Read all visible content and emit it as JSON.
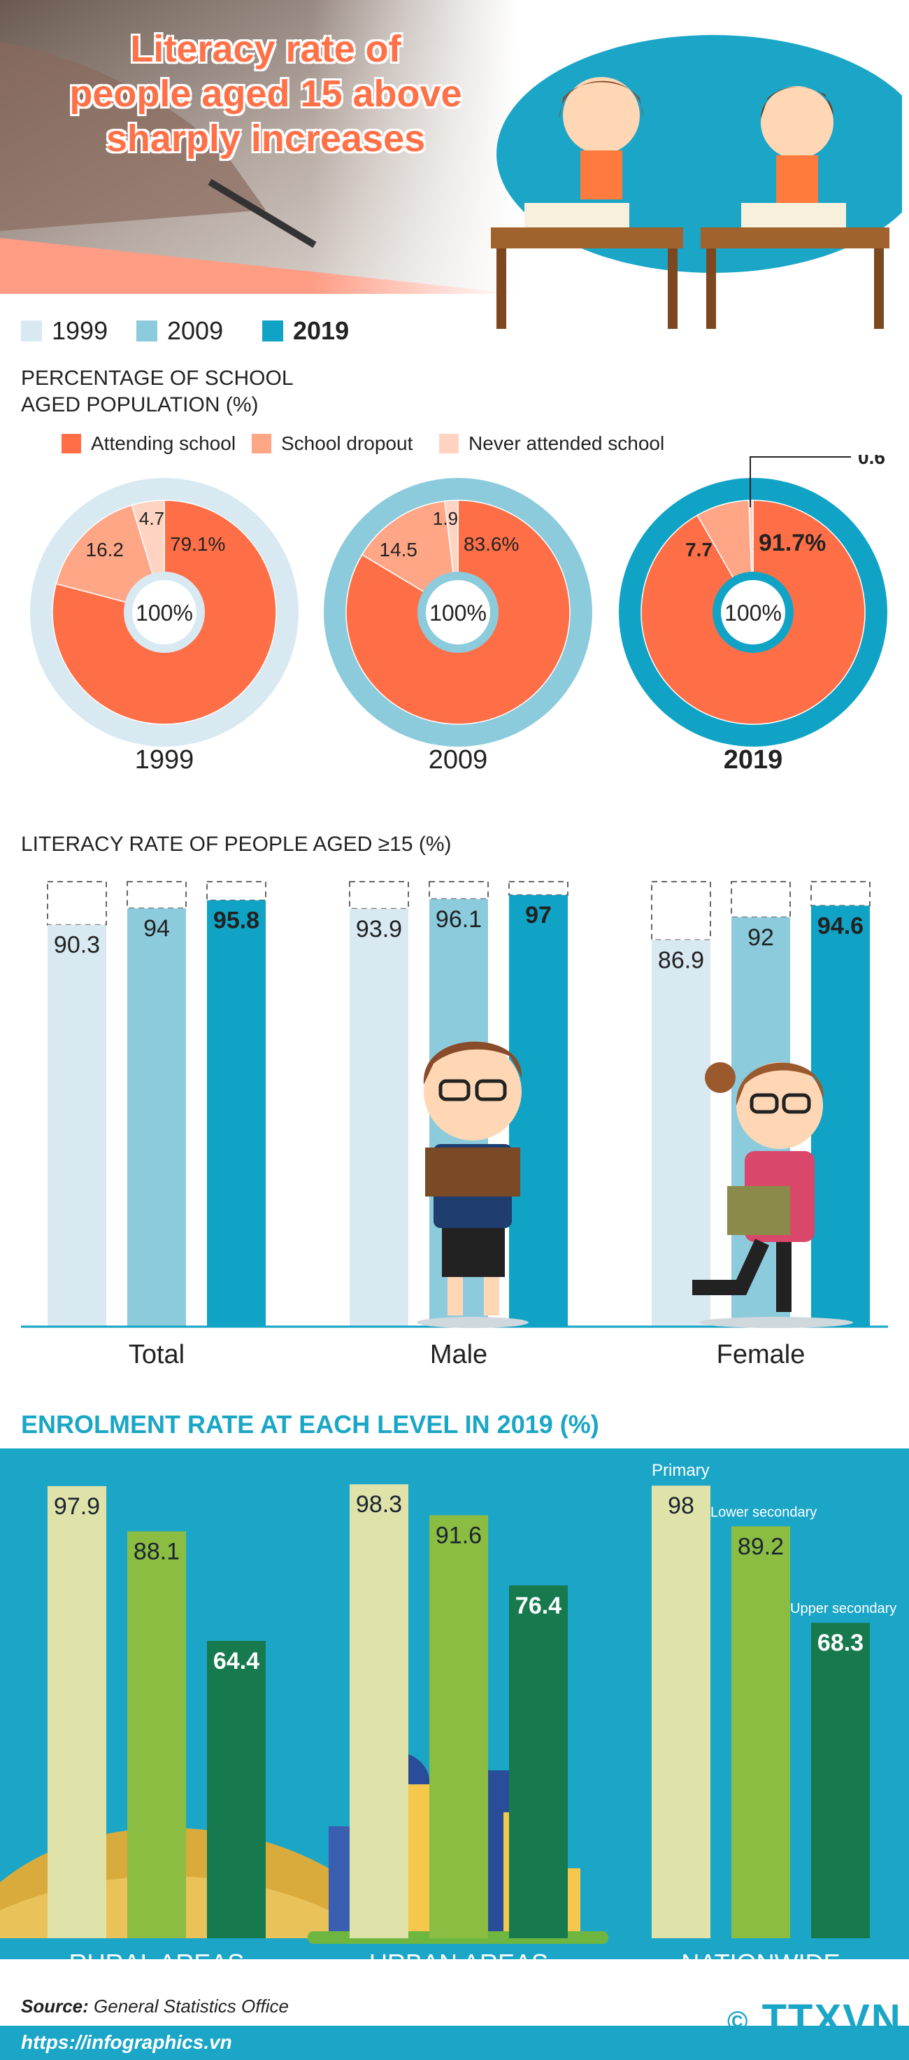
{
  "header": {
    "title_lines": [
      "Literacy rate of",
      "people aged 15 above",
      "sharply increases"
    ]
  },
  "year_legend": [
    {
      "label": "1999",
      "color": "#d8e9f2",
      "bold": false
    },
    {
      "label": "2009",
      "color": "#8ccbdc",
      "bold": false
    },
    {
      "label": "2019",
      "color": "#10a3c5",
      "bold": true
    }
  ],
  "colors": {
    "attending": "#ff6f47",
    "dropout": "#ffa686",
    "never": "#ffd3c2",
    "rural": "#dfe3a9",
    "light_green": "#8bbd42",
    "dark_green": "#17794e",
    "enrol_bg": "#1ba6c8"
  },
  "chart_data": [
    {
      "type": "pie",
      "title": "PERCENTAGE OF SCHOOL AGED POPULATION (%)",
      "legend": [
        "Attending school",
        "School dropout",
        "Never attended school"
      ],
      "center_label": "100%",
      "donuts": [
        {
          "year": "1999",
          "ring_color": "#d8e9f2",
          "attending": 79.1,
          "dropout": 16.2,
          "never": 4.7,
          "labels": {
            "attending": "79.1%",
            "dropout": "16.2",
            "never": "4.7"
          }
        },
        {
          "year": "2009",
          "ring_color": "#8ccbdc",
          "attending": 83.6,
          "dropout": 14.5,
          "never": 1.9,
          "labels": {
            "attending": "83.6%",
            "dropout": "14.5",
            "never": "1.9"
          }
        },
        {
          "year": "2019",
          "ring_color": "#10a3c5",
          "attending": 91.7,
          "dropout": 7.7,
          "never": 0.6,
          "labels": {
            "attending": "91.7%",
            "dropout": "7.7",
            "never": "0.6"
          }
        }
      ]
    },
    {
      "type": "bar",
      "title": "LITERACY RATE OF PEOPLE AGED ≥15 (%)",
      "categories": [
        "Total",
        "Male",
        "Female"
      ],
      "series": [
        {
          "name": "1999",
          "values": [
            90.3,
            93.9,
            86.9
          ]
        },
        {
          "name": "2009",
          "values": [
            94,
            96.1,
            92
          ]
        },
        {
          "name": "2019",
          "values": [
            95.8,
            97,
            94.6
          ]
        }
      ],
      "value_labels": [
        [
          "90.3",
          "93.9",
          "86.9"
        ],
        [
          "94",
          "96.1",
          "92"
        ],
        [
          "95.8",
          "97",
          "94.6"
        ]
      ],
      "ylim": [
        0,
        100
      ]
    },
    {
      "type": "bar",
      "title": "ENROLMENT RATE AT EACH LEVEL IN 2019 (%)",
      "categories": [
        "RURAL AREAS",
        "URBAN AREAS",
        "NATIONWIDE"
      ],
      "series": [
        {
          "name": "Primary",
          "values": [
            97.9,
            98.3,
            98
          ]
        },
        {
          "name": "Lower secondary",
          "values": [
            88.1,
            91.6,
            89.2
          ]
        },
        {
          "name": "Upper secondary",
          "values": [
            64.4,
            76.4,
            68.3
          ]
        }
      ],
      "value_labels": [
        [
          "97.9",
          "98.3",
          "98"
        ],
        [
          "88.1",
          "91.6",
          "89.2"
        ],
        [
          "64.4",
          "76.4",
          "68.3"
        ]
      ],
      "ylim": [
        0,
        100
      ]
    }
  ],
  "footer": {
    "source_label": "Source:",
    "source_text": "General Statistics Office",
    "url": "https://infographics.vn",
    "logo_text": "TTXVN"
  }
}
